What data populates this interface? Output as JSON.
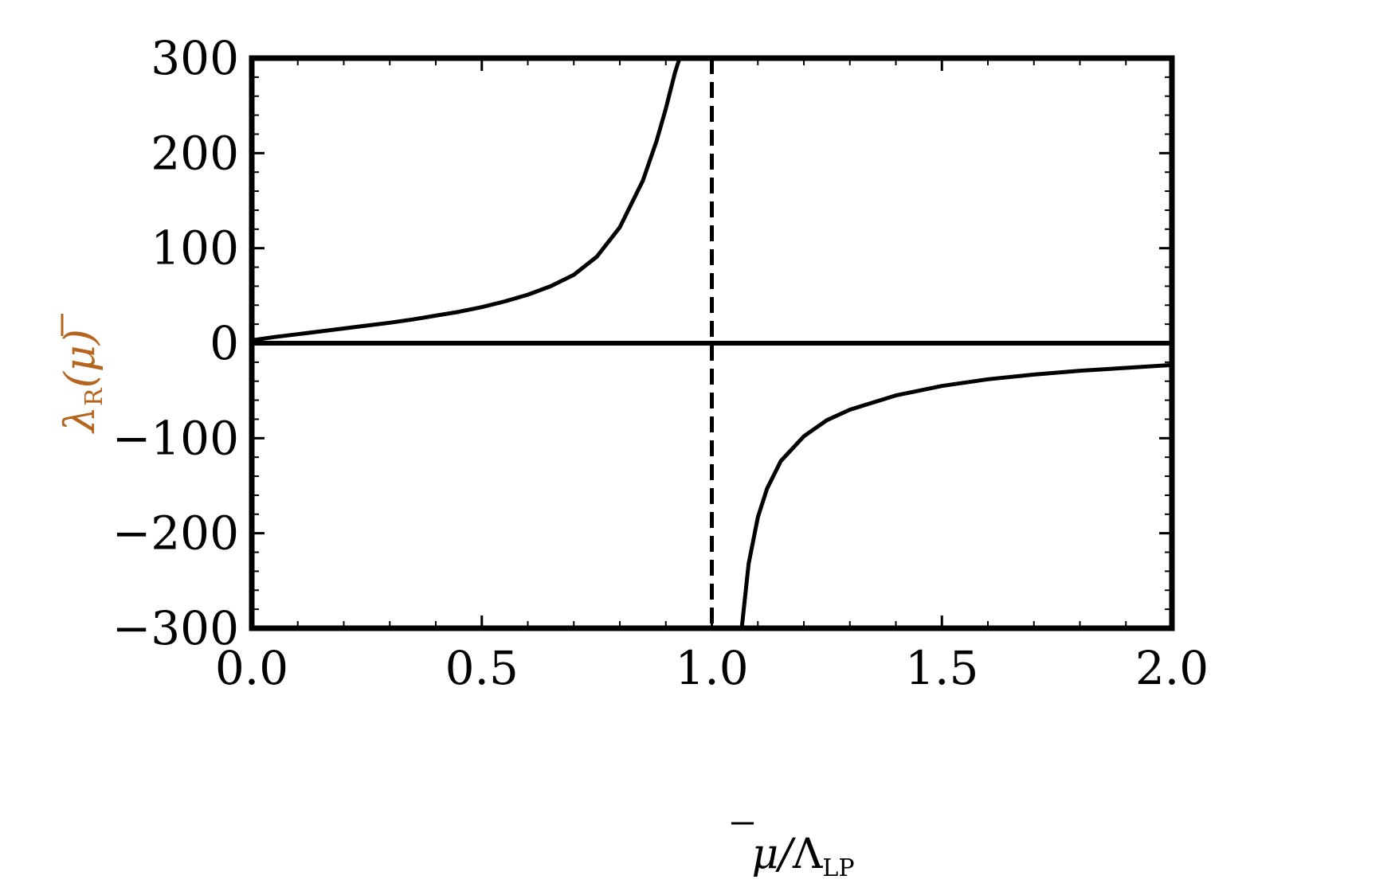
{
  "chart_data": {
    "type": "line",
    "xlabel": "μ̄/Λ_LP",
    "xlabel_parts": {
      "base": "μ",
      "sep": "/",
      "sym": "Λ",
      "sub": "LP"
    },
    "ylabel": "λ_R(μ̄)",
    "ylabel_parts": {
      "base": "λ",
      "sub": "R",
      "arg": "(μ)"
    },
    "xlim": [
      0.0,
      2.0
    ],
    "ylim": [
      -300,
      300
    ],
    "xticks": [
      "0.0",
      "0.5",
      "1.0",
      "1.5",
      "2.0"
    ],
    "xtick_values": [
      0.0,
      0.5,
      1.0,
      1.5,
      2.0
    ],
    "yticks": [
      "300",
      "200",
      "100",
      "0",
      "−100",
      "−200",
      "−300"
    ],
    "ytick_values": [
      300,
      200,
      100,
      0,
      -100,
      -200,
      -300
    ],
    "grid": false,
    "legend": "none",
    "series": [
      {
        "style": "solid",
        "color": "#000000",
        "x": [
          0.0,
          0.05,
          0.1,
          0.15,
          0.2,
          0.25,
          0.3,
          0.35,
          0.4,
          0.45,
          0.5,
          0.55,
          0.6,
          0.65,
          0.7,
          0.75,
          0.8,
          0.85,
          0.88,
          0.9,
          0.92,
          0.93
        ],
        "y": [
          3,
          6.5,
          9.5,
          12.5,
          15.5,
          18.5,
          21.5,
          25,
          29,
          33,
          38,
          44,
          51,
          60,
          72,
          91,
          122,
          171,
          213,
          247,
          285,
          300
        ]
      },
      {
        "style": "solid",
        "color": "#000000",
        "x": [
          1.065,
          1.08,
          1.1,
          1.12,
          1.15,
          1.2,
          1.25,
          1.3,
          1.4,
          1.5,
          1.6,
          1.7,
          1.8,
          1.9,
          2.0
        ],
        "y": [
          -300,
          -232,
          -183,
          -153,
          -124,
          -98,
          -81,
          -70,
          -55,
          -45,
          -38,
          -33,
          -29,
          -26,
          -23
        ]
      }
    ],
    "zero_line": {
      "y": 0,
      "style": "solid",
      "color": "#000000"
    },
    "asymptote": {
      "x": 1.0,
      "style": "dashed",
      "color": "#000000"
    },
    "ylabel_color": "#b5651d"
  }
}
